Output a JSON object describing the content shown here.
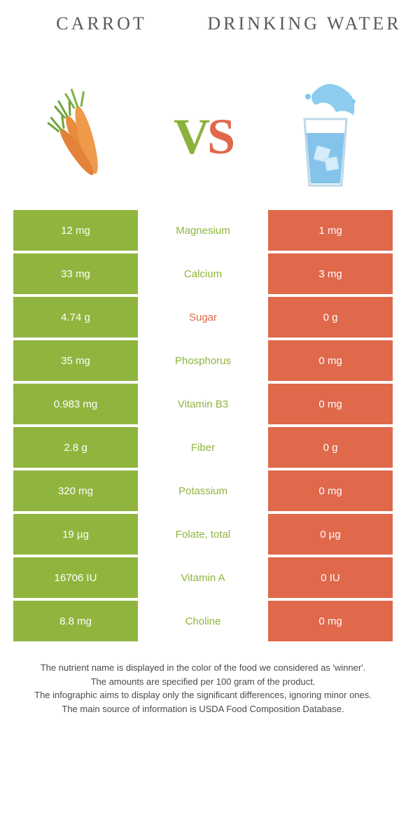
{
  "header": {
    "left_title": "Carrot",
    "right_title": "Drinking Water",
    "vs_v": "V",
    "vs_s": "S"
  },
  "colors": {
    "left_bg": "#8fb53e",
    "right_bg": "#e0684b",
    "mid_green": "#8fb53e",
    "mid_orange": "#e0684b",
    "text": "#333333",
    "title": "#5a5a5a",
    "bg": "#ffffff"
  },
  "rows": [
    {
      "left": "12 mg",
      "mid": "Magnesium",
      "mid_color": "green",
      "right": "1 mg"
    },
    {
      "left": "33 mg",
      "mid": "Calcium",
      "mid_color": "green",
      "right": "3 mg"
    },
    {
      "left": "4.74 g",
      "mid": "Sugar",
      "mid_color": "orange",
      "right": "0 g"
    },
    {
      "left": "35 mg",
      "mid": "Phosphorus",
      "mid_color": "green",
      "right": "0 mg"
    },
    {
      "left": "0.983 mg",
      "mid": "Vitamin B3",
      "mid_color": "green",
      "right": "0 mg"
    },
    {
      "left": "2.8 g",
      "mid": "Fiber",
      "mid_color": "green",
      "right": "0 g"
    },
    {
      "left": "320 mg",
      "mid": "Potassium",
      "mid_color": "green",
      "right": "0 mg"
    },
    {
      "left": "19 µg",
      "mid": "Folate, total",
      "mid_color": "green",
      "right": "0 µg"
    },
    {
      "left": "16706 IU",
      "mid": "Vitamin A",
      "mid_color": "green",
      "right": "0 IU"
    },
    {
      "left": "8.8 mg",
      "mid": "Choline",
      "mid_color": "green",
      "right": "0 mg"
    }
  ],
  "footnote": {
    "l1": "The nutrient name is displayed in the color of the food we considered as 'winner'.",
    "l2": "The amounts are specified per 100 gram of the product.",
    "l3": "The infographic aims to display only the significant differences, ignoring minor ones.",
    "l4": "The main source of information is USDA Food Composition Database."
  }
}
